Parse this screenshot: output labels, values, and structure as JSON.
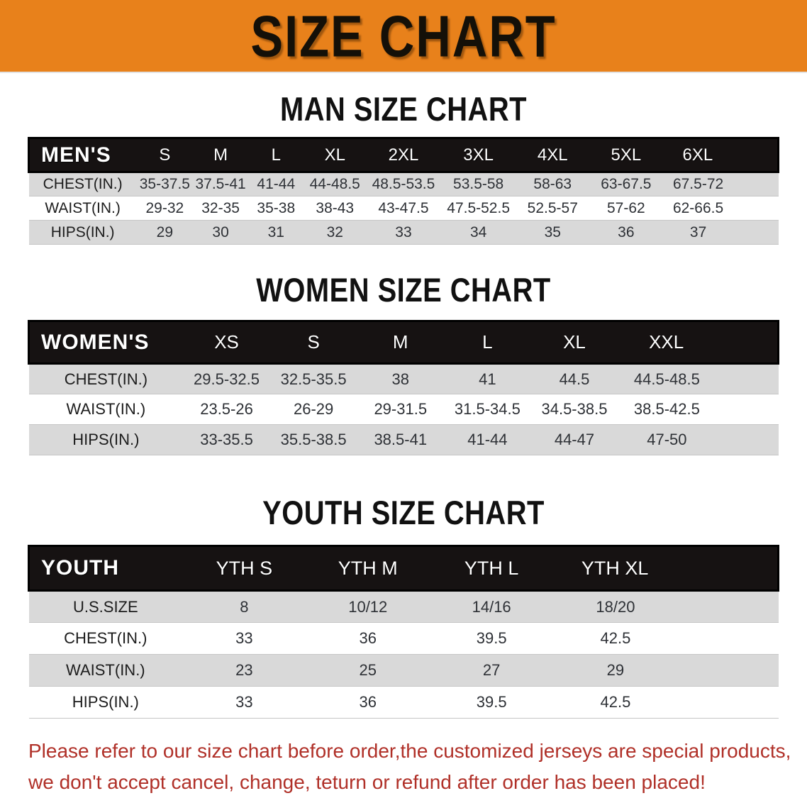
{
  "banner": {
    "title": "SIZE CHART"
  },
  "colors": {
    "banner_bg": "#e8811b",
    "header_band": "#161212",
    "row_stripe": "#d9d9d9",
    "note_red": "#b03028",
    "title_text": "#111111"
  },
  "sections": [
    {
      "title": "MAN SIZE CHART",
      "group": "MEN'S",
      "columns": [
        "S",
        "M",
        "L",
        "XL",
        "2XL",
        "3XL",
        "4XL",
        "5XL",
        "6XL"
      ],
      "rows": [
        {
          "label": "CHEST(IN.)",
          "values": [
            "35-37.5",
            "37.5-41",
            "41-44",
            "44-48.5",
            "48.5-53.5",
            "53.5-58",
            "58-63",
            "63-67.5",
            "67.5-72"
          ]
        },
        {
          "label": "WAIST(IN.)",
          "values": [
            "29-32",
            "32-35",
            "35-38",
            "38-43",
            "43-47.5",
            "47.5-52.5",
            "52.5-57",
            "57-62",
            "62-66.5"
          ]
        },
        {
          "label": "HIPS(IN.)",
          "values": [
            "29",
            "30",
            "31",
            "32",
            "33",
            "34",
            "35",
            "36",
            "37"
          ]
        }
      ]
    },
    {
      "title": "WOMEN SIZE CHART",
      "group": "WOMEN'S",
      "columns": [
        "XS",
        "S",
        "M",
        "L",
        "XL",
        "XXL"
      ],
      "rows": [
        {
          "label": "CHEST(IN.)",
          "values": [
            "29.5-32.5",
            "32.5-35.5",
            "38",
            "41",
            "44.5",
            "44.5-48.5"
          ]
        },
        {
          "label": "WAIST(IN.)",
          "values": [
            "23.5-26",
            "26-29",
            "29-31.5",
            "31.5-34.5",
            "34.5-38.5",
            "38.5-42.5"
          ]
        },
        {
          "label": "HIPS(IN.)",
          "values": [
            "33-35.5",
            "35.5-38.5",
            "38.5-41",
            "41-44",
            "44-47",
            "47-50"
          ]
        }
      ]
    },
    {
      "title": "YOUTH SIZE CHART",
      "group": "YOUTH",
      "columns": [
        "YTH S",
        "YTH M",
        "YTH L",
        "YTH XL"
      ],
      "rows": [
        {
          "label": "U.S.SIZE",
          "values": [
            "8",
            "10/12",
            "14/16",
            "18/20"
          ]
        },
        {
          "label": "CHEST(IN.)",
          "values": [
            "33",
            "36",
            "39.5",
            "42.5"
          ]
        },
        {
          "label": "WAIST(IN.)",
          "values": [
            "23",
            "25",
            "27",
            "29"
          ]
        },
        {
          "label": "HIPS(IN.)",
          "values": [
            "33",
            "36",
            "39.5",
            "42.5"
          ]
        }
      ]
    }
  ],
  "footnote": {
    "lines": [
      "Please refer to our size chart before order,the customized jerseys are special products,",
      "we don't accept cancel, change, teturn or refund after order has been placed!"
    ]
  }
}
